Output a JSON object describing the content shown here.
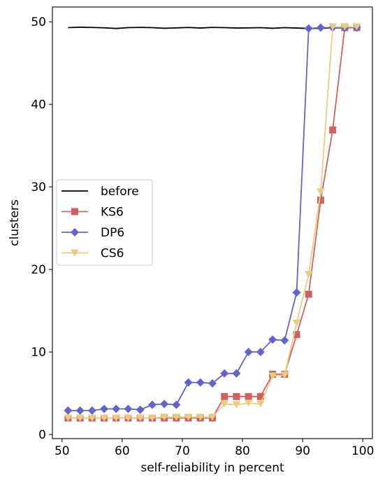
{
  "chart_data": {
    "type": "line",
    "xlabel": "self-reliability in percent",
    "ylabel": "clusters",
    "xlim": [
      48.4,
      101.6
    ],
    "ylim": [
      -0.5,
      51.8
    ],
    "xticks": [
      50,
      60,
      70,
      80,
      90,
      100
    ],
    "yticks": [
      0,
      10,
      20,
      30,
      40,
      50
    ],
    "grid": false,
    "legend_position": "center-left",
    "series": [
      {
        "name": "before",
        "color": "#000000",
        "marker": "none",
        "x": [
          51,
          53,
          55,
          57,
          59,
          61,
          63,
          65,
          67,
          69,
          71,
          73,
          75,
          77,
          79,
          81,
          83,
          85,
          87,
          89,
          91,
          93,
          95,
          97,
          99
        ],
        "y": [
          49.3,
          49.35,
          49.32,
          49.28,
          49.2,
          49.3,
          49.33,
          49.3,
          49.22,
          49.27,
          49.32,
          49.25,
          49.33,
          49.3,
          49.25,
          49.27,
          49.3,
          49.22,
          49.3,
          49.25,
          49.2,
          49.22,
          49.28,
          49.27,
          49.3
        ]
      },
      {
        "name": "KS6",
        "color": "#d06060",
        "marker": "square",
        "x": [
          51,
          53,
          55,
          57,
          59,
          61,
          63,
          65,
          67,
          69,
          71,
          73,
          75,
          77,
          79,
          81,
          83,
          85,
          87,
          89,
          91,
          93,
          95,
          97,
          99
        ],
        "y": [
          2.0,
          2.0,
          2.0,
          2.0,
          2.0,
          2.0,
          2.0,
          2.0,
          2.0,
          2.0,
          2.0,
          2.0,
          2.0,
          4.6,
          4.6,
          4.6,
          4.6,
          7.3,
          7.3,
          12.1,
          17.0,
          28.4,
          36.9,
          49.3,
          49.3
        ]
      },
      {
        "name": "DP6",
        "color": "#6262d0",
        "marker": "diamond",
        "x": [
          51,
          53,
          55,
          57,
          59,
          61,
          63,
          65,
          67,
          69,
          71,
          73,
          75,
          77,
          79,
          81,
          83,
          85,
          87,
          89,
          91,
          93,
          95,
          97,
          99
        ],
        "y": [
          2.9,
          2.9,
          2.9,
          3.1,
          3.1,
          3.1,
          3.0,
          3.6,
          3.7,
          3.6,
          6.3,
          6.3,
          6.2,
          7.4,
          7.4,
          10.0,
          10.0,
          11.5,
          11.4,
          17.2,
          49.2,
          49.3,
          49.3,
          49.3,
          49.3
        ]
      },
      {
        "name": "CS6",
        "color": "#e8cc80",
        "marker": "triangle-down",
        "x": [
          51,
          53,
          55,
          57,
          59,
          61,
          63,
          65,
          67,
          69,
          71,
          73,
          75,
          77,
          79,
          81,
          83,
          85,
          87,
          89,
          91,
          93,
          95,
          97,
          99
        ],
        "y": [
          2.0,
          2.0,
          2.0,
          2.0,
          2.0,
          2.0,
          2.0,
          2.0,
          2.1,
          2.1,
          2.1,
          2.1,
          2.1,
          3.7,
          3.6,
          3.8,
          3.7,
          7.1,
          7.2,
          13.5,
          19.4,
          29.4,
          49.4,
          49.4,
          49.4
        ]
      }
    ]
  }
}
